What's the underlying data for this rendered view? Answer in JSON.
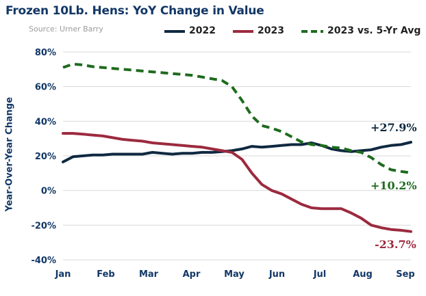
{
  "chart_data": {
    "type": "line",
    "title": "Frozen 10Lb. Hens: YoY Change in Value",
    "subtitle": "Source: Urner Barry",
    "ylabel": "Year-Over-Year Change",
    "xlabel": "",
    "ylim": [
      -40,
      80
    ],
    "yticks": [
      -40,
      -20,
      0,
      20,
      40,
      60,
      80
    ],
    "ytick_labels": [
      "-40%",
      "-20%",
      "0%",
      "20%",
      "40%",
      "60%",
      "80%"
    ],
    "xlim": [
      1,
      36
    ],
    "x_months": [
      "Jan",
      "Feb",
      "Mar",
      "Apr",
      "May",
      "Jun",
      "Jul",
      "Aug",
      "Sep"
    ],
    "x": [
      1,
      2,
      3,
      4,
      5,
      6,
      7,
      8,
      9,
      10,
      11,
      12,
      13,
      14,
      15,
      16,
      17,
      18,
      19,
      20,
      21,
      22,
      23,
      24,
      25,
      26,
      27,
      28,
      29,
      30,
      31,
      32,
      33,
      34,
      35,
      36
    ],
    "grid": true,
    "legend_position": "top",
    "series": [
      {
        "name": "2022",
        "color": "#0f2940",
        "style": "solid",
        "values": [
          16.5,
          19.5,
          20,
          20.5,
          20.5,
          21,
          21,
          21,
          21,
          22,
          21.5,
          21,
          21.5,
          21.5,
          22,
          22,
          22.5,
          23,
          24,
          25.5,
          25,
          25.5,
          26,
          26.5,
          26.5,
          27.5,
          26,
          24,
          23,
          22.5,
          23,
          23.5,
          25,
          26,
          26.5,
          27.9
        ]
      },
      {
        "name": "2023",
        "color": "#9c2a3e",
        "style": "solid",
        "values": [
          33,
          33,
          32.5,
          32,
          31.5,
          30.5,
          29.5,
          29,
          28.5,
          27.5,
          27,
          26.5,
          26,
          25.5,
          25,
          24,
          23,
          22,
          18,
          10,
          3.5,
          0,
          -2,
          -5,
          -8,
          -10,
          -10.5,
          -10.5,
          -10.5,
          -13,
          -16,
          -20,
          -21.5,
          -22.5,
          -23,
          -23.7
        ]
      },
      {
        "name": "2023 vs. 5-Yr Avg",
        "color": "#1e6b1e",
        "style": "dashed",
        "values": [
          71,
          73,
          72.5,
          71.5,
          71,
          70.5,
          70,
          69.5,
          69,
          68.5,
          68,
          67.5,
          67,
          66.5,
          65.5,
          64.5,
          63.5,
          60,
          52,
          43,
          37.5,
          36,
          34,
          31,
          28,
          26.5,
          26,
          25,
          24.5,
          23,
          22,
          19,
          15,
          12,
          11,
          10.2
        ]
      }
    ],
    "annotations": [
      "+27.9%",
      "+10.2%",
      "-23.7%"
    ]
  }
}
